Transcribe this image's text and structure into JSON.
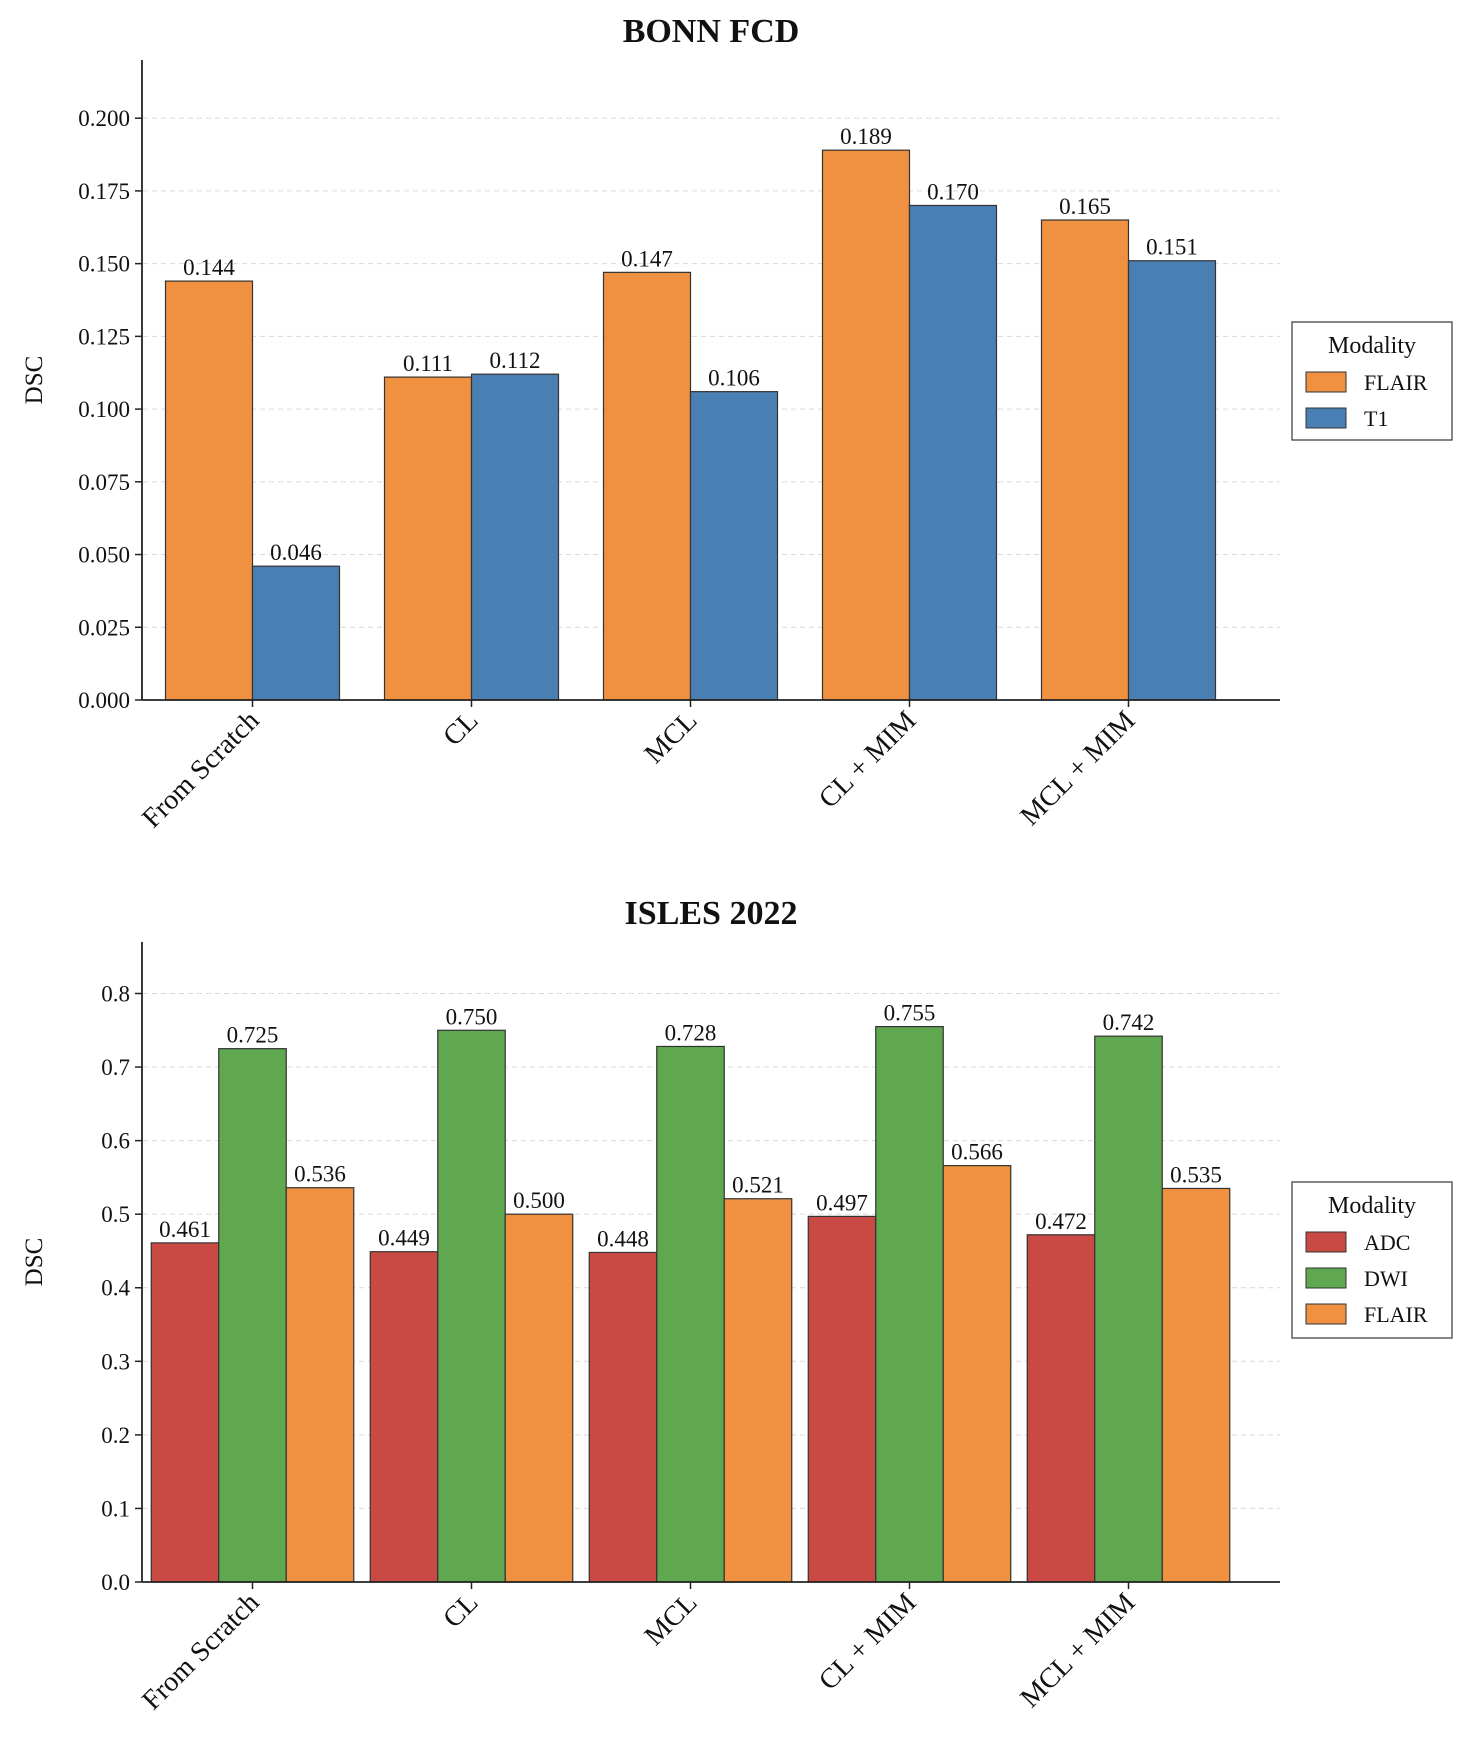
{
  "chart_data": [
    {
      "type": "bar",
      "title": "BONN FCD",
      "xlabel": "",
      "ylabel": "DSC",
      "ylim": [
        0,
        0.22
      ],
      "yticks": [
        0.0,
        0.025,
        0.05,
        0.075,
        0.1,
        0.125,
        0.15,
        0.175,
        0.2
      ],
      "ytick_labels": [
        "0.000",
        "0.025",
        "0.050",
        "0.075",
        "0.100",
        "0.125",
        "0.150",
        "0.175",
        "0.200"
      ],
      "grid": "y-dashed",
      "categories": [
        "From Scratch",
        "CL",
        "MCL",
        "CL + MIM",
        "MCL + MIM"
      ],
      "series": [
        {
          "name": "FLAIR",
          "color": "#ef9141",
          "values": [
            0.144,
            0.111,
            0.147,
            0.189,
            0.165
          ],
          "labels": [
            "0.144",
            "0.111",
            "0.147",
            "0.189",
            "0.165"
          ]
        },
        {
          "name": "T1",
          "color": "#4a7fb3",
          "values": [
            0.046,
            0.112,
            0.106,
            0.17,
            0.151
          ],
          "labels": [
            "0.046",
            "0.112",
            "0.106",
            "0.170",
            "0.151"
          ]
        }
      ],
      "legend": {
        "title": "Modality",
        "placement": "center-right-outside"
      }
    },
    {
      "type": "bar",
      "title": "ISLES 2022",
      "xlabel": "",
      "ylabel": "DSC",
      "ylim": [
        0,
        0.87
      ],
      "yticks": [
        0.0,
        0.1,
        0.2,
        0.3,
        0.4,
        0.5,
        0.6,
        0.7,
        0.8
      ],
      "ytick_labels": [
        "0.0",
        "0.1",
        "0.2",
        "0.3",
        "0.4",
        "0.5",
        "0.6",
        "0.7",
        "0.8"
      ],
      "grid": "y-dashed",
      "categories": [
        "From Scratch",
        "CL",
        "MCL",
        "CL + MIM",
        "MCL + MIM"
      ],
      "series": [
        {
          "name": "ADC",
          "color": "#c94a45",
          "values": [
            0.461,
            0.449,
            0.448,
            0.497,
            0.472
          ],
          "labels": [
            "0.461",
            "0.449",
            "0.448",
            "0.497",
            "0.472"
          ]
        },
        {
          "name": "DWI",
          "color": "#5fa84f",
          "values": [
            0.725,
            0.75,
            0.728,
            0.755,
            0.742
          ],
          "labels": [
            "0.725",
            "0.750",
            "0.728",
            "0.755",
            "0.742"
          ]
        },
        {
          "name": "FLAIR",
          "color": "#ef9141",
          "values": [
            0.536,
            0.5,
            0.521,
            0.566,
            0.535
          ],
          "labels": [
            "0.536",
            "0.500",
            "0.521",
            "0.566",
            "0.535"
          ]
        }
      ],
      "legend": {
        "title": "Modality",
        "placement": "center-right-outside"
      }
    }
  ]
}
